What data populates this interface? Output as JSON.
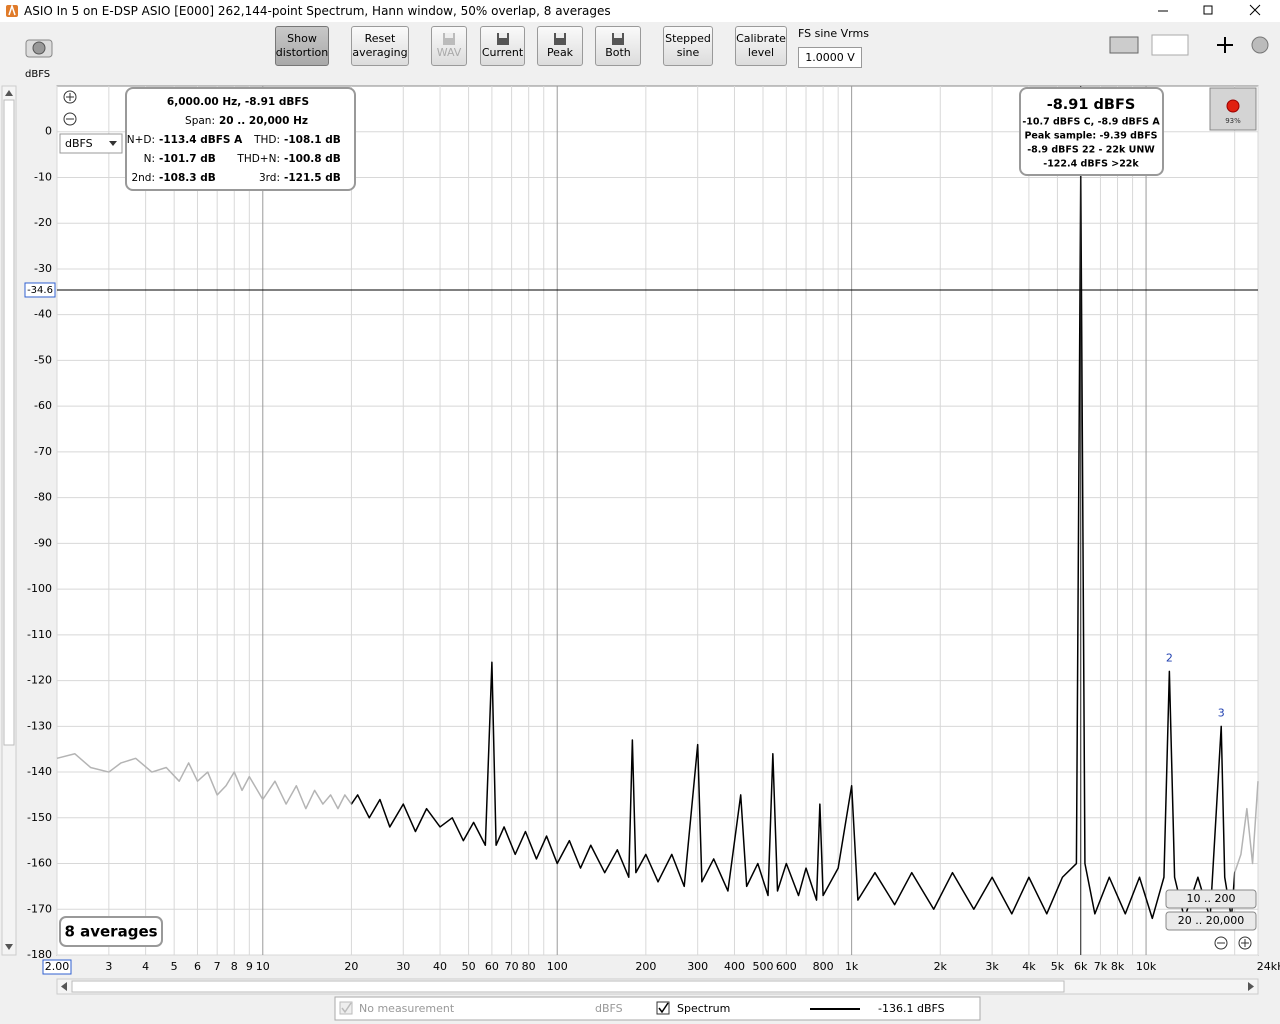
{
  "window": {
    "title": "ASIO In 5 on E-DSP ASIO [E000] 262,144-point Spectrum, Hann window, 50% overlap, 8 averages"
  },
  "toolbar": {
    "buttons": [
      {
        "lines": [
          "Show",
          "distortion"
        ],
        "state": "pressed"
      },
      {
        "lines": [
          "Reset",
          "averaging"
        ],
        "state": "normal"
      },
      {
        "lines": [
          "WAV"
        ],
        "state": "disabled",
        "icon": true
      },
      {
        "lines": [
          "Current"
        ],
        "state": "normal",
        "icon": true
      },
      {
        "lines": [
          "Peak"
        ],
        "state": "normal",
        "icon": true
      },
      {
        "lines": [
          "Both"
        ],
        "state": "normal",
        "icon": true
      },
      {
        "lines": [
          "Stepped",
          "sine"
        ],
        "state": "normal"
      },
      {
        "lines": [
          "Calibrate",
          "level"
        ],
        "state": "normal"
      }
    ],
    "fs_label": "FS sine Vrms",
    "fs_value": "1.0000 V"
  },
  "chart_data": {
    "type": "line",
    "y_unit_label": "dBFS",
    "unit_selector": "dBFS",
    "xscale": "log",
    "grid": true,
    "xlim": [
      2,
      24000
    ],
    "ylim": [
      -180,
      10
    ],
    "yticks": [
      0,
      -10,
      -20,
      -30,
      -40,
      -50,
      -60,
      -70,
      -80,
      -90,
      -100,
      -110,
      -120,
      -130,
      -140,
      -150,
      -160,
      -170,
      -180
    ],
    "xticks": [
      {
        "value": 2,
        "label": "2.00"
      },
      3,
      4,
      5,
      6,
      7,
      8,
      9,
      10,
      20,
      30,
      40,
      50,
      60,
      70,
      80,
      100,
      200,
      300,
      400,
      500,
      600,
      800,
      {
        "value": 1000,
        "label": "1k"
      },
      {
        "value": 2000,
        "label": "2k"
      },
      {
        "value": 3000,
        "label": "3k"
      },
      {
        "value": 4000,
        "label": "4k"
      },
      {
        "value": 5000,
        "label": "5k"
      },
      {
        "value": 6000,
        "label": "6k"
      },
      {
        "value": 7000,
        "label": "7k"
      },
      {
        "value": 8000,
        "label": "8k"
      },
      {
        "value": 10000,
        "label": "10k"
      },
      {
        "value": 24000,
        "label": "24kHz"
      }
    ],
    "x_minor_grid": [
      90,
      700,
      900,
      9000,
      20000
    ],
    "active_range": [
      20,
      20000
    ],
    "series": [
      {
        "name": "Spectrum",
        "color": "#000000",
        "inactive_color": "#b4b4b4",
        "x": [
          2,
          2.3,
          2.6,
          3,
          3.3,
          3.7,
          4.2,
          4.7,
          5.2,
          5.6,
          6,
          6.5,
          7,
          7.5,
          8,
          8.5,
          9,
          10,
          11,
          12,
          13,
          14,
          15,
          16,
          17,
          18,
          19,
          20,
          21,
          23,
          25,
          27,
          30,
          33,
          36,
          40,
          44,
          48,
          52,
          57,
          60,
          62,
          66,
          72,
          78,
          85,
          92,
          100,
          110,
          120,
          130,
          145,
          160,
          175,
          180,
          185,
          200,
          220,
          245,
          270,
          300,
          310,
          340,
          380,
          420,
          440,
          480,
          520,
          540,
          560,
          600,
          660,
          700,
          760,
          780,
          800,
          900,
          1000,
          1050,
          1200,
          1400,
          1600,
          1900,
          2200,
          2600,
          3000,
          3500,
          4000,
          4600,
          5200,
          5800,
          6000,
          6200,
          6700,
          7500,
          8500,
          9500,
          10500,
          11500,
          12000,
          12500,
          13500,
          15000,
          16500,
          18000,
          18500,
          19500,
          20000,
          21000,
          22000,
          23000,
          24000
        ],
        "values": [
          -137,
          -136,
          -139,
          -140,
          -138,
          -137,
          -140,
          -139,
          -142,
          -138,
          -142,
          -140,
          -145,
          -143,
          -140,
          -144,
          -141,
          -146,
          -142,
          -147,
          -143,
          -148,
          -144,
          -147,
          -145,
          -148,
          -145,
          -147,
          -145,
          -150,
          -146,
          -152,
          -147,
          -153,
          -148,
          -152,
          -150,
          -155,
          -151,
          -156,
          -116,
          -156,
          -152,
          -158,
          -153,
          -159,
          -154,
          -160,
          -155,
          -161,
          -156,
          -162,
          -157,
          -163,
          -133,
          -162,
          -158,
          -164,
          -158,
          -165,
          -134,
          -164,
          -159,
          -166,
          -145,
          -165,
          -160,
          -167,
          -136,
          -166,
          -160,
          -167,
          -161,
          -168,
          -147,
          -167,
          -161,
          -143,
          -168,
          -162,
          -169,
          -162,
          -170,
          -162,
          -170,
          -163,
          -171,
          -163,
          -171,
          -163,
          -160,
          -8.91,
          -160,
          -171,
          -163,
          -171,
          -163,
          -172,
          -163,
          -118,
          -163,
          -172,
          -163,
          -172,
          -130,
          -163,
          -172,
          -162,
          -158,
          -148,
          -160,
          -142
        ]
      }
    ],
    "cursor": {
      "x": 6000,
      "y": -34.6
    },
    "annotations": [
      {
        "text": "2",
        "x": 12000,
        "y": -118
      },
      {
        "text": "3",
        "x": 18000,
        "y": -130
      }
    ],
    "averages_label": "8 averages",
    "info": {
      "header": "6,000.00 Hz, -8.91 dBFS",
      "span_label": "Span:",
      "span_value": "20 .. 20,000 Hz",
      "rows": [
        [
          "N+D:",
          "-113.4 dBFS A",
          "THD:",
          "-108.1 dB"
        ],
        [
          "N:",
          "-101.7 dB",
          "THD+N:",
          "-100.8 dB"
        ],
        [
          "2nd:",
          "-108.3 dB",
          "3rd:",
          "-121.5 dB"
        ]
      ]
    },
    "peak_box": {
      "main": "-8.91 dBFS",
      "lines": [
        "-10.7 dBFS C, -8.9 dBFS A",
        "Peak sample: -9.39 dBFS",
        "-8.9 dBFS 22 - 22k UNW",
        "-122.4 dBFS >22k"
      ]
    },
    "range_buttons": [
      "10 .. 200",
      "20 .. 20,000"
    ],
    "record_level": "93%"
  },
  "legend_bar": {
    "inactive_name": "No measurement",
    "inactive_unit": "dBFS",
    "spectrum_reading": "-136.1 dBFS"
  }
}
